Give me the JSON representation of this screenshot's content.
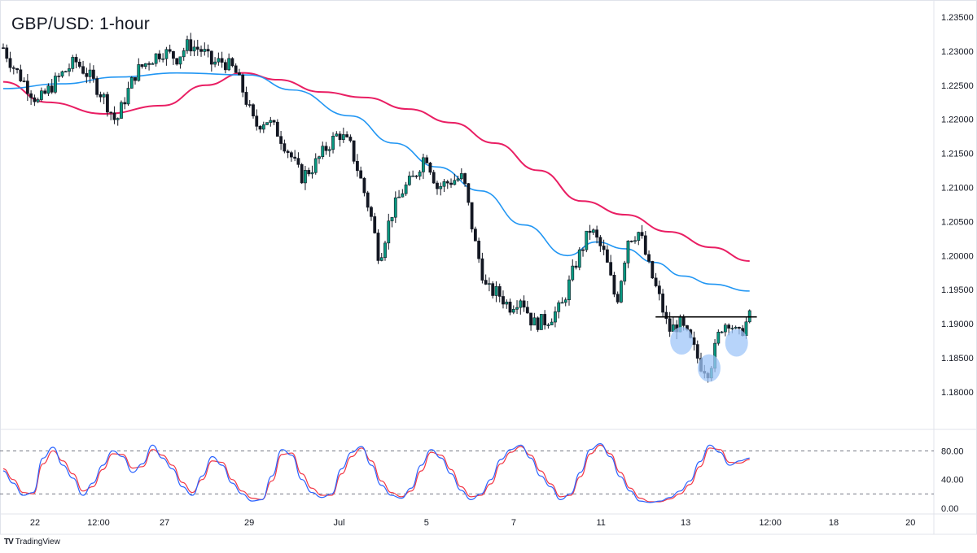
{
  "chart_data": {
    "type": "candlestick",
    "title": "GBP/USD: 1-hour",
    "price_axis": {
      "ticks": [
        "1.23500",
        "1.23000",
        "1.22500",
        "1.22000",
        "1.21500",
        "1.21000",
        "1.20500",
        "1.20000",
        "1.19500",
        "1.19000",
        "1.18500",
        "1.18000"
      ],
      "ylim": [
        1.1745,
        1.2375
      ]
    },
    "oscillator_axis": {
      "ticks": [
        "80.00",
        "40.00",
        "0.00"
      ],
      "levels": [
        80,
        20
      ],
      "ylim": [
        -8,
        110
      ]
    },
    "time_axis": {
      "ticks": [
        "22",
        "12:00",
        "27",
        "29",
        "Jul",
        "5",
        "7",
        "11",
        "13",
        "12:00",
        "18",
        "20"
      ]
    },
    "price_series": [
      {
        "x": 0,
        "v": 1.2305
      },
      {
        "x": 0.3,
        "v": 1.228
      },
      {
        "x": 0.8,
        "v": 1.225
      },
      {
        "x": 1.2,
        "v": 1.2225
      },
      {
        "x": 1.5,
        "v": 1.224
      },
      {
        "x": 2.0,
        "v": 1.2265
      },
      {
        "x": 2.5,
        "v": 1.2285
      },
      {
        "x": 3.0,
        "v": 1.2262
      },
      {
        "x": 3.5,
        "v": 1.223
      },
      {
        "x": 3.9,
        "v": 1.2195
      },
      {
        "x": 4.2,
        "v": 1.223
      },
      {
        "x": 4.6,
        "v": 1.227
      },
      {
        "x": 5.0,
        "v": 1.2285
      },
      {
        "x": 5.5,
        "v": 1.23
      },
      {
        "x": 6.0,
        "v": 1.229
      },
      {
        "x": 6.4,
        "v": 1.231
      },
      {
        "x": 6.9,
        "v": 1.23
      },
      {
        "x": 7.2,
        "v": 1.2282
      },
      {
        "x": 7.6,
        "v": 1.2285
      },
      {
        "x": 8.0,
        "v": 1.2272
      },
      {
        "x": 8.3,
        "v": 1.224
      },
      {
        "x": 8.7,
        "v": 1.219
      },
      {
        "x": 9.1,
        "v": 1.22
      },
      {
        "x": 9.5,
        "v": 1.218
      },
      {
        "x": 9.9,
        "v": 1.215
      },
      {
        "x": 10.3,
        "v": 1.2115
      },
      {
        "x": 10.7,
        "v": 1.213
      },
      {
        "x": 11.2,
        "v": 1.216
      },
      {
        "x": 11.6,
        "v": 1.218
      },
      {
        "x": 12.0,
        "v": 1.216
      },
      {
        "x": 12.3,
        "v": 1.212
      },
      {
        "x": 12.7,
        "v": 1.206
      },
      {
        "x": 13.0,
        "v": 1.1995
      },
      {
        "x": 13.4,
        "v": 1.206
      },
      {
        "x": 13.8,
        "v": 1.2095
      },
      {
        "x": 14.2,
        "v": 1.2115
      },
      {
        "x": 14.6,
        "v": 1.215
      },
      {
        "x": 15.0,
        "v": 1.21
      },
      {
        "x": 15.5,
        "v": 1.211
      },
      {
        "x": 15.9,
        "v": 1.2115
      },
      {
        "x": 16.3,
        "v": 1.202
      },
      {
        "x": 16.7,
        "v": 1.195
      },
      {
        "x": 17.1,
        "v": 1.1945
      },
      {
        "x": 17.5,
        "v": 1.1925
      },
      {
        "x": 17.9,
        "v": 1.194
      },
      {
        "x": 18.3,
        "v": 1.19
      },
      {
        "x": 18.8,
        "v": 1.1905
      },
      {
        "x": 19.3,
        "v": 1.1925
      },
      {
        "x": 19.8,
        "v": 1.199
      },
      {
        "x": 20.3,
        "v": 1.204
      },
      {
        "x": 20.8,
        "v": 1.2
      },
      {
        "x": 21.2,
        "v": 1.193
      },
      {
        "x": 21.6,
        "v": 1.2025
      },
      {
        "x": 22.0,
        "v": 1.2035
      },
      {
        "x": 22.3,
        "v": 1.1985
      },
      {
        "x": 22.7,
        "v": 1.1935
      },
      {
        "x": 23.0,
        "v": 1.189
      },
      {
        "x": 23.4,
        "v": 1.19
      },
      {
        "x": 23.8,
        "v": 1.187
      },
      {
        "x": 24.1,
        "v": 1.184
      },
      {
        "x": 24.4,
        "v": 1.183
      },
      {
        "x": 24.8,
        "v": 1.1895
      },
      {
        "x": 25.1,
        "v": 1.1905
      },
      {
        "x": 25.4,
        "v": 1.188
      },
      {
        "x": 25.8,
        "v": 1.191
      }
    ],
    "ma_blue": [
      {
        "x": 0,
        "v": 1.2245
      },
      {
        "x": 2,
        "v": 1.2252
      },
      {
        "x": 4,
        "v": 1.2262
      },
      {
        "x": 6,
        "v": 1.2268
      },
      {
        "x": 8.5,
        "v": 1.2265
      },
      {
        "x": 10,
        "v": 1.2243
      },
      {
        "x": 12,
        "v": 1.2205
      },
      {
        "x": 13.5,
        "v": 1.2165
      },
      {
        "x": 15,
        "v": 1.213
      },
      {
        "x": 16.5,
        "v": 1.2095
      },
      {
        "x": 18,
        "v": 1.2045
      },
      {
        "x": 19.5,
        "v": 1.2
      },
      {
        "x": 20.5,
        "v": 1.202
      },
      {
        "x": 21.5,
        "v": 1.201
      },
      {
        "x": 22.5,
        "v": 1.199
      },
      {
        "x": 23.5,
        "v": 1.197
      },
      {
        "x": 24.5,
        "v": 1.1958
      },
      {
        "x": 25.8,
        "v": 1.1948
      }
    ],
    "ma_pink": [
      {
        "x": 0,
        "v": 1.2255
      },
      {
        "x": 1.5,
        "v": 1.2225
      },
      {
        "x": 3.5,
        "v": 1.2208
      },
      {
        "x": 5.5,
        "v": 1.222
      },
      {
        "x": 7,
        "v": 1.225
      },
      {
        "x": 8.3,
        "v": 1.2268
      },
      {
        "x": 9.5,
        "v": 1.2258
      },
      {
        "x": 11,
        "v": 1.224
      },
      {
        "x": 12.5,
        "v": 1.2232
      },
      {
        "x": 14,
        "v": 1.2215
      },
      {
        "x": 15.5,
        "v": 1.2195
      },
      {
        "x": 17,
        "v": 1.2165
      },
      {
        "x": 18.5,
        "v": 1.2125
      },
      {
        "x": 20,
        "v": 1.208
      },
      {
        "x": 21.5,
        "v": 1.206
      },
      {
        "x": 23,
        "v": 1.2035
      },
      {
        "x": 24.5,
        "v": 1.2012
      },
      {
        "x": 25.8,
        "v": 1.1992
      }
    ],
    "stoch_k": [
      52,
      35,
      18,
      22,
      70,
      85,
      60,
      42,
      18,
      35,
      60,
      80,
      72,
      50,
      62,
      88,
      70,
      55,
      30,
      18,
      45,
      72,
      60,
      35,
      20,
      10,
      12,
      45,
      82,
      74,
      40,
      22,
      15,
      20,
      55,
      78,
      86,
      60,
      32,
      18,
      14,
      28,
      60,
      82,
      70,
      48,
      25,
      12,
      20,
      40,
      68,
      82,
      88,
      70,
      45,
      30,
      12,
      20,
      50,
      82,
      90,
      72,
      44,
      24,
      10,
      8,
      10,
      15,
      24,
      38,
      65,
      88,
      78,
      60,
      66,
      70
    ],
    "stoch_d": [
      55,
      40,
      22,
      20,
      62,
      80,
      66,
      48,
      24,
      30,
      54,
      76,
      75,
      56,
      58,
      82,
      74,
      60,
      36,
      22,
      40,
      66,
      64,
      40,
      24,
      14,
      12,
      38,
      75,
      77,
      48,
      28,
      18,
      18,
      48,
      72,
      84,
      66,
      38,
      22,
      16,
      24,
      52,
      78,
      74,
      54,
      30,
      16,
      18,
      34,
      62,
      78,
      86,
      74,
      52,
      34,
      16,
      18,
      44,
      76,
      88,
      76,
      50,
      28,
      14,
      9,
      9,
      13,
      20,
      33,
      58,
      84,
      82,
      64,
      63,
      68
    ],
    "resistance_level": 1.191,
    "highlighted_lows": [
      {
        "x": 23.45,
        "v": 1.1875
      },
      {
        "x": 24.4,
        "v": 1.1835
      },
      {
        "x": 25.35,
        "v": 1.1872
      }
    ],
    "colors": {
      "up_candle": "#089981",
      "down_candle": "#131722",
      "ma_blue": "#2196f3",
      "ma_pink": "#e91e63",
      "stoch_k": "#2962ff",
      "stoch_d": "#f23645",
      "highlight": "#9fc5f8",
      "resistance": "#000000"
    },
    "grid": false,
    "legend": "none"
  },
  "footer": {
    "brand_text": "TradingView",
    "brand_logo": "TV"
  }
}
